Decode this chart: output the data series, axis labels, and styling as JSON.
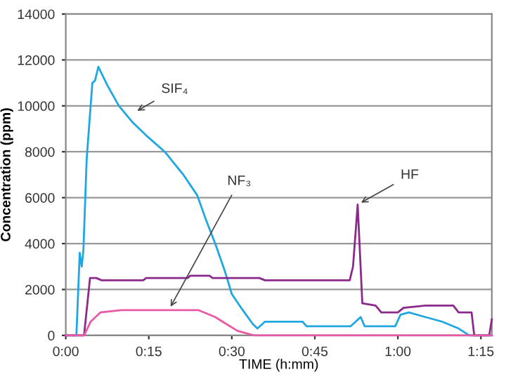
{
  "chart_data": {
    "type": "line",
    "xlabel": "TIME (h:mm)",
    "ylabel": "Concentration (ppm)",
    "series": [
      {
        "color": "#1ea7e1",
        "x": [
          0,
          0.032,
          0.042,
          0.048,
          0.053,
          0.063,
          0.08,
          0.088,
          0.098,
          0.125,
          0.16,
          0.2,
          0.243,
          0.298,
          0.354,
          0.396,
          0.423,
          0.45,
          0.479,
          0.5,
          0.533,
          0.563,
          0.577,
          0.6,
          0.713,
          0.725,
          0.858,
          0.888,
          0.9,
          0.992,
          1.008,
          1.033,
          1.083,
          1.133,
          1.183,
          1.215,
          1.283
        ],
        "values": [
          0,
          0,
          3600,
          3000,
          3700,
          7700,
          11000,
          11100,
          11700,
          10900,
          10000,
          9300,
          8700,
          8000,
          7000,
          6100,
          5000,
          4000,
          2800,
          1800,
          1100,
          500,
          300,
          600,
          600,
          400,
          400,
          800,
          400,
          400,
          900,
          1000,
          800,
          600,
          300,
          0,
          0
        ]
      },
      {
        "color": "#8b2a8c",
        "x": [
          0,
          0.055,
          0.073,
          0.092,
          0.108,
          0.233,
          0.242,
          0.367,
          0.375,
          0.433,
          0.442,
          0.583,
          0.6,
          0.855,
          0.865,
          0.879,
          0.893,
          0.933,
          0.95,
          1.0,
          1.017,
          1.083,
          1.167,
          1.183,
          1.222,
          1.23,
          1.275,
          1.283
        ],
        "values": [
          0,
          0,
          2500,
          2500,
          2400,
          2400,
          2500,
          2500,
          2600,
          2600,
          2500,
          2500,
          2400,
          2400,
          3000,
          5700,
          1400,
          1300,
          1000,
          1000,
          1200,
          1300,
          1300,
          1000,
          1000,
          0,
          0,
          700
        ]
      },
      {
        "color": "#e85aa5",
        "x": [
          0,
          0.055,
          0.075,
          0.104,
          0.167,
          0.4,
          0.417,
          0.45,
          0.483,
          0.517,
          0.567,
          1.283
        ],
        "values": [
          0,
          0,
          600,
          1000,
          1100,
          1100,
          1000,
          800,
          500,
          200,
          0,
          0
        ]
      }
    ],
    "annotations": [
      {
        "text": "SIF₄",
        "x": 0.205,
        "y": 9700
      },
      {
        "text": "NF₃",
        "x": 0.31,
        "y": 1100
      },
      {
        "text": "HF",
        "x": 0.879,
        "y": 5700
      }
    ],
    "xlim": [
      0,
      1.283
    ],
    "xticks": [
      {
        "value": 0,
        "label": "0:00"
      },
      {
        "value": 0.25,
        "label": "0:15"
      },
      {
        "value": 0.5,
        "label": "0:30"
      },
      {
        "value": 0.75,
        "label": "0:45"
      },
      {
        "value": 1,
        "label": "1:00"
      },
      {
        "value": 1.25,
        "label": "1:15"
      }
    ],
    "ylim": [
      0,
      14000
    ],
    "yticks": [
      0,
      2000,
      4000,
      6000,
      8000,
      10000,
      12000,
      14000
    ],
    "grid": "y",
    "legend": false,
    "marker": "none",
    "line_style": "solid"
  }
}
